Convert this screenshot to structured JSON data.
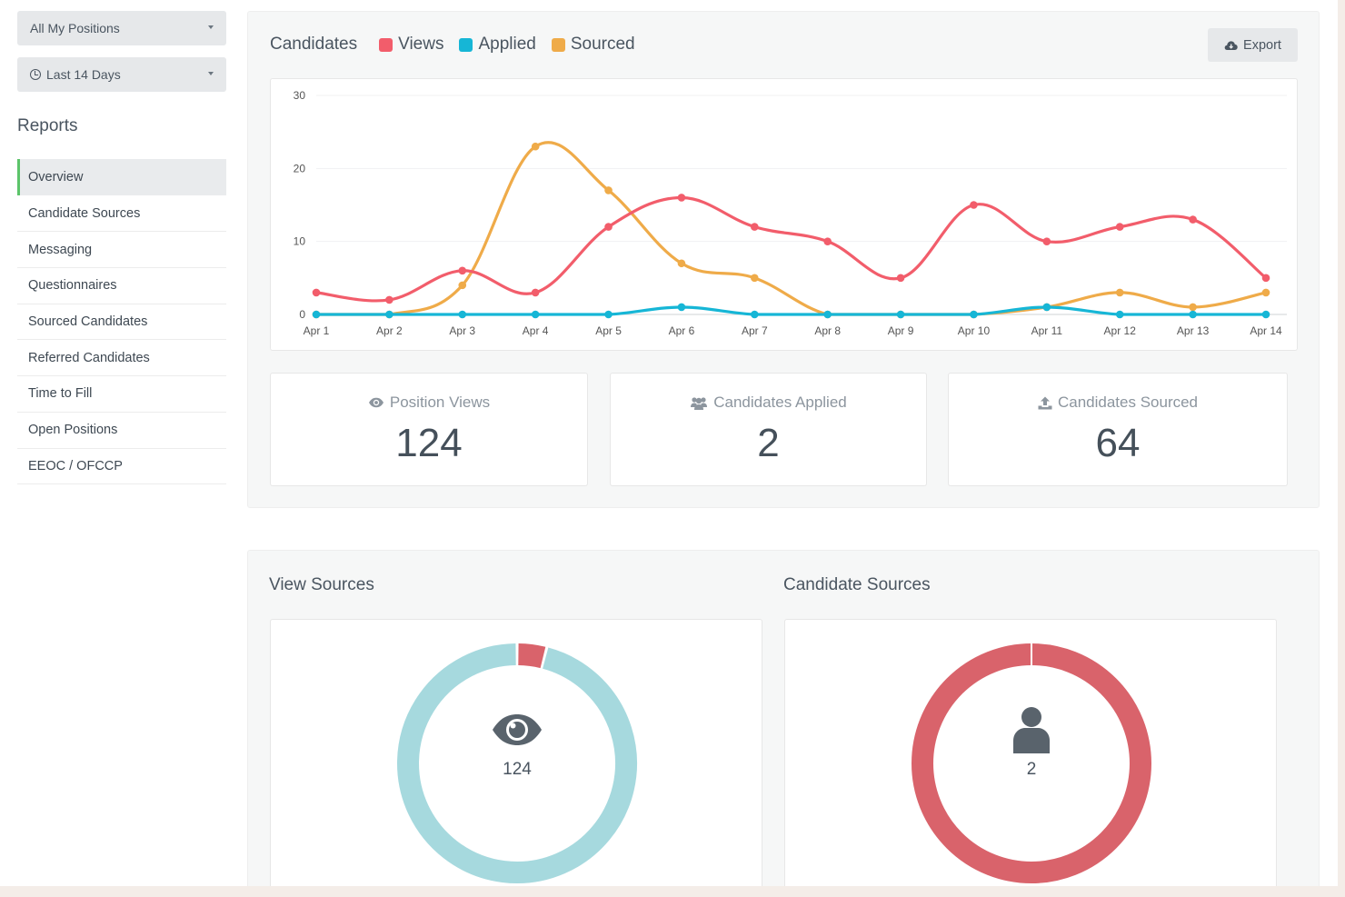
{
  "filters": {
    "positions": "All My Positions",
    "date_range": "Last 14 Days"
  },
  "sidebar": {
    "title": "Reports",
    "items": [
      {
        "label": "Overview"
      },
      {
        "label": "Candidate Sources"
      },
      {
        "label": "Messaging"
      },
      {
        "label": "Questionnaires"
      },
      {
        "label": "Sourced Candidates"
      },
      {
        "label": "Referred Candidates"
      },
      {
        "label": "Time to Fill"
      },
      {
        "label": "Open Positions"
      },
      {
        "label": "EEOC / OFCCP"
      }
    ]
  },
  "chart_panel": {
    "title": "Candidates",
    "export_label": "Export",
    "legend": [
      {
        "label": "Views",
        "color": "#f25d6b"
      },
      {
        "label": "Applied",
        "color": "#16b6d6"
      },
      {
        "label": "Sourced",
        "color": "#efab49"
      }
    ]
  },
  "chart_data": {
    "type": "line",
    "title": "Candidates",
    "x": [
      "Apr 1",
      "Apr 2",
      "Apr 3",
      "Apr 4",
      "Apr 5",
      "Apr 6",
      "Apr 7",
      "Apr 8",
      "Apr 9",
      "Apr 10",
      "Apr 11",
      "Apr 12",
      "Apr 13",
      "Apr 14"
    ],
    "yticks": [
      0,
      10,
      20,
      30
    ],
    "ylim": [
      0,
      30
    ],
    "grid": true,
    "series": [
      {
        "name": "Views",
        "color": "#f25d6b",
        "values": [
          3,
          2,
          6,
          3,
          12,
          16,
          12,
          10,
          5,
          15,
          10,
          12,
          13,
          5
        ]
      },
      {
        "name": "Applied",
        "color": "#16b6d6",
        "values": [
          0,
          0,
          0,
          0,
          0,
          1,
          0,
          0,
          0,
          0,
          1,
          0,
          0,
          0
        ]
      },
      {
        "name": "Sourced",
        "color": "#efab49",
        "values": [
          0,
          0,
          4,
          23,
          17,
          7,
          5,
          0,
          0,
          0,
          1,
          3,
          1,
          3
        ]
      }
    ]
  },
  "stats": [
    {
      "label": "Position Views",
      "value": "124",
      "icon": "eye-icon"
    },
    {
      "label": "Candidates Applied",
      "value": "2",
      "icon": "users-icon"
    },
    {
      "label": "Candidates Sourced",
      "value": "64",
      "icon": "upload-icon"
    }
  ],
  "sources": {
    "view": {
      "title": "View Sources",
      "total": "124",
      "icon": "eye-icon",
      "colors": [
        "#a6d9de",
        "#d9636b"
      ],
      "shares": [
        0.96,
        0.04
      ]
    },
    "candidate": {
      "title": "Candidate Sources",
      "total": "2",
      "icon": "user-icon",
      "colors": [
        "#d9636b"
      ],
      "shares": [
        1.0
      ]
    }
  }
}
